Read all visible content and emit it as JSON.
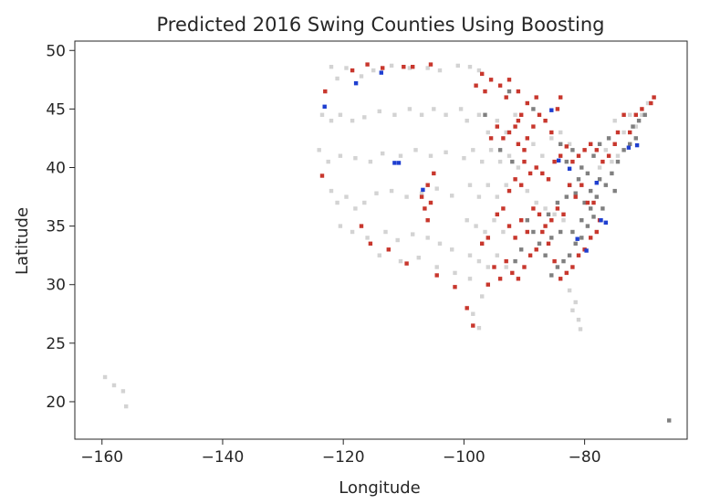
{
  "chart_data": {
    "type": "scatter",
    "title": "Predicted 2016 Swing Counties Using Boosting",
    "xlabel": "Longitude",
    "ylabel": "Latitude",
    "xlim": [
      -164.5,
      -63
    ],
    "ylim": [
      16.8,
      50.8
    ],
    "xticks": [
      -160,
      -140,
      -120,
      -100,
      -80
    ],
    "yticks": [
      20,
      25,
      30,
      35,
      40,
      45,
      50
    ],
    "grid": false,
    "legend": "none",
    "colors": {
      "not_swing": "#d3d3d3",
      "predicted_swing": "#808080",
      "flip_republican": "#c8372d",
      "flip_democrat": "#1f3fd0",
      "axes": "#262626"
    },
    "series": [
      {
        "key": "not_swing",
        "color": "#d3d3d3",
        "points": [
          [
            -159.5,
            22.1
          ],
          [
            -158.0,
            21.4
          ],
          [
            -156.5,
            20.9
          ],
          [
            -156.0,
            19.6
          ],
          [
            -122.0,
            48.6
          ],
          [
            -121.0,
            47.6
          ],
          [
            -119.5,
            48.5
          ],
          [
            -117.0,
            47.8
          ],
          [
            -115.0,
            48.3
          ],
          [
            -112.0,
            48.7
          ],
          [
            -109.0,
            48.5
          ],
          [
            -106.0,
            48.5
          ],
          [
            -104.0,
            48.3
          ],
          [
            -101.0,
            48.7
          ],
          [
            -99.0,
            48.6
          ],
          [
            -97.5,
            48.3
          ],
          [
            -123.5,
            44.5
          ],
          [
            -122.0,
            44.0
          ],
          [
            -120.5,
            44.5
          ],
          [
            -118.5,
            44.0
          ],
          [
            -116.5,
            44.3
          ],
          [
            -114.0,
            44.8
          ],
          [
            -111.5,
            44.5
          ],
          [
            -109.0,
            45.0
          ],
          [
            -107.0,
            44.5
          ],
          [
            -105.0,
            45.0
          ],
          [
            -103.0,
            44.5
          ],
          [
            -100.5,
            45.0
          ],
          [
            -124.0,
            41.5
          ],
          [
            -122.5,
            40.5
          ],
          [
            -120.5,
            41.0
          ],
          [
            -118.0,
            40.8
          ],
          [
            -115.5,
            40.5
          ],
          [
            -113.5,
            41.2
          ],
          [
            -110.5,
            41.0
          ],
          [
            -108.0,
            41.5
          ],
          [
            -105.5,
            41.0
          ],
          [
            -103.0,
            41.3
          ],
          [
            -100.0,
            40.8
          ],
          [
            -122.0,
            38.0
          ],
          [
            -121.0,
            37.0
          ],
          [
            -119.5,
            37.5
          ],
          [
            -118.0,
            36.5
          ],
          [
            -116.5,
            37.0
          ],
          [
            -114.5,
            37.8
          ],
          [
            -112.0,
            38.0
          ],
          [
            -109.5,
            37.5
          ],
          [
            -107.0,
            37.8
          ],
          [
            -104.5,
            38.2
          ],
          [
            -102.0,
            37.6
          ],
          [
            -120.5,
            35.0
          ],
          [
            -118.5,
            34.5
          ],
          [
            -116.0,
            34.0
          ],
          [
            -113.0,
            34.5
          ],
          [
            -111.0,
            33.8
          ],
          [
            -108.5,
            34.3
          ],
          [
            -106.0,
            34.0
          ],
          [
            -104.0,
            33.5
          ],
          [
            -102.0,
            33.0
          ],
          [
            -114.0,
            32.5
          ],
          [
            -110.5,
            32.0
          ],
          [
            -107.5,
            32.3
          ],
          [
            -104.5,
            31.5
          ],
          [
            -101.5,
            31.0
          ],
          [
            -99.0,
            30.5
          ],
          [
            -97.0,
            29.0
          ],
          [
            -98.5,
            27.5
          ],
          [
            -97.5,
            26.3
          ],
          [
            -99.5,
            44.0
          ],
          [
            -97.5,
            44.5
          ],
          [
            -96.0,
            43.0
          ],
          [
            -94.5,
            44.0
          ],
          [
            -93.0,
            43.0
          ],
          [
            -91.5,
            44.5
          ],
          [
            -98.5,
            41.5
          ],
          [
            -97.0,
            40.5
          ],
          [
            -95.5,
            41.5
          ],
          [
            -94.0,
            40.5
          ],
          [
            -92.5,
            41.0
          ],
          [
            -91.0,
            40.0
          ],
          [
            -99.0,
            38.5
          ],
          [
            -97.5,
            37.5
          ],
          [
            -96.0,
            38.5
          ],
          [
            -94.5,
            37.5
          ],
          [
            -93.0,
            38.5
          ],
          [
            -99.5,
            35.5
          ],
          [
            -98.0,
            35.0
          ],
          [
            -96.5,
            34.5
          ],
          [
            -95.0,
            35.5
          ],
          [
            -93.5,
            34.5
          ],
          [
            -99.0,
            32.5
          ],
          [
            -97.5,
            32.0
          ],
          [
            -96.0,
            31.5
          ],
          [
            -94.5,
            32.5
          ],
          [
            -93.0,
            31.5
          ],
          [
            -89.5,
            38.0
          ],
          [
            -88.0,
            37.0
          ],
          [
            -86.5,
            36.5
          ],
          [
            -85.0,
            36.0
          ],
          [
            -83.5,
            35.5
          ],
          [
            -88.5,
            42.0
          ],
          [
            -87.0,
            41.0
          ],
          [
            -85.5,
            42.5
          ],
          [
            -84.0,
            43.0
          ],
          [
            -82.5,
            42.0
          ],
          [
            -82.5,
            29.5
          ],
          [
            -81.5,
            28.5
          ],
          [
            -81.0,
            27.0
          ],
          [
            -80.7,
            26.2
          ],
          [
            -82.0,
            27.8
          ],
          [
            -75.0,
            44.0
          ],
          [
            -73.5,
            43.0
          ],
          [
            -72.5,
            44.5
          ],
          [
            -71.5,
            43.5
          ],
          [
            -70.5,
            44.5
          ],
          [
            -69.5,
            45.5
          ],
          [
            -77.5,
            40.0
          ],
          [
            -76.5,
            41.5
          ],
          [
            -75.5,
            40.5
          ],
          [
            -74.5,
            41.0
          ]
        ]
      },
      {
        "key": "predicted_swing",
        "color": "#808080",
        "points": [
          [
            -66.0,
            18.4
          ],
          [
            -92.5,
            46.5
          ],
          [
            -88.5,
            45.0
          ],
          [
            -84.0,
            42.0
          ],
          [
            -83.0,
            40.5
          ],
          [
            -82.0,
            41.5
          ],
          [
            -80.5,
            40.0
          ],
          [
            -79.5,
            39.5
          ],
          [
            -79.0,
            38.0
          ],
          [
            -78.0,
            37.5
          ],
          [
            -77.0,
            36.5
          ],
          [
            -78.5,
            35.8
          ],
          [
            -79.5,
            35.0
          ],
          [
            -80.5,
            34.0
          ],
          [
            -81.5,
            33.5
          ],
          [
            -82.5,
            32.5
          ],
          [
            -83.5,
            32.0
          ],
          [
            -84.5,
            31.5
          ],
          [
            -85.5,
            30.8
          ],
          [
            -86.5,
            32.5
          ],
          [
            -87.5,
            33.5
          ],
          [
            -88.5,
            34.5
          ],
          [
            -89.5,
            35.5
          ],
          [
            -90.5,
            33.0
          ],
          [
            -91.5,
            32.0
          ],
          [
            -86.0,
            36.0
          ],
          [
            -84.5,
            37.0
          ],
          [
            -83.0,
            37.5
          ],
          [
            -81.5,
            37.8
          ],
          [
            -80.0,
            37.0
          ],
          [
            -76.5,
            38.5
          ],
          [
            -75.5,
            39.5
          ],
          [
            -74.5,
            40.5
          ],
          [
            -73.5,
            41.5
          ],
          [
            -72.5,
            42.0
          ],
          [
            -71.5,
            42.5
          ],
          [
            -72.0,
            43.5
          ],
          [
            -71.0,
            44.0
          ],
          [
            -70.0,
            44.5
          ],
          [
            -76.0,
            42.5
          ],
          [
            -77.5,
            42.0
          ],
          [
            -78.5,
            41.0
          ],
          [
            -81.0,
            39.0
          ],
          [
            -82.5,
            38.5
          ],
          [
            -85.5,
            34.0
          ],
          [
            -84.0,
            34.5
          ],
          [
            -82.0,
            34.5
          ],
          [
            -80.5,
            35.5
          ],
          [
            -79.0,
            36.5
          ],
          [
            -77.5,
            39.0
          ],
          [
            -75.0,
            38.0
          ],
          [
            -96.5,
            44.5
          ],
          [
            -94.0,
            41.5
          ],
          [
            -92.0,
            40.5
          ]
        ]
      },
      {
        "key": "flip_republican",
        "color": "#c8372d",
        "points": [
          [
            -123.5,
            39.3
          ],
          [
            -123.0,
            46.5
          ],
          [
            -118.5,
            48.3
          ],
          [
            -116.0,
            48.8
          ],
          [
            -113.5,
            48.5
          ],
          [
            -110.0,
            48.6
          ],
          [
            -108.5,
            48.6
          ],
          [
            -105.5,
            48.8
          ],
          [
            -97.0,
            48.0
          ],
          [
            -98.0,
            47.0
          ],
          [
            -96.5,
            46.5
          ],
          [
            -95.5,
            47.5
          ],
          [
            -94.0,
            47.0
          ],
          [
            -93.0,
            46.0
          ],
          [
            -92.5,
            47.5
          ],
          [
            -91.0,
            46.5
          ],
          [
            -90.5,
            44.5
          ],
          [
            -91.5,
            43.5
          ],
          [
            -92.5,
            43.0
          ],
          [
            -93.5,
            42.5
          ],
          [
            -94.5,
            43.5
          ],
          [
            -95.5,
            42.5
          ],
          [
            -91.0,
            42.0
          ],
          [
            -90.0,
            41.5
          ],
          [
            -89.5,
            42.5
          ],
          [
            -88.5,
            43.5
          ],
          [
            -87.5,
            44.5
          ],
          [
            -86.5,
            44.0
          ],
          [
            -85.5,
            43.0
          ],
          [
            -84.5,
            45.0
          ],
          [
            -84.0,
            46.0
          ],
          [
            -90.0,
            40.5
          ],
          [
            -89.0,
            39.5
          ],
          [
            -88.0,
            40.0
          ],
          [
            -87.0,
            39.5
          ],
          [
            -86.0,
            39.0
          ],
          [
            -85.0,
            40.5
          ],
          [
            -84.0,
            41.0
          ],
          [
            -83.0,
            41.8
          ],
          [
            -82.0,
            40.5
          ],
          [
            -81.0,
            41.0
          ],
          [
            -80.0,
            41.5
          ],
          [
            -79.0,
            42.0
          ],
          [
            -78.0,
            41.5
          ],
          [
            -77.0,
            40.5
          ],
          [
            -76.0,
            41.0
          ],
          [
            -75.0,
            42.0
          ],
          [
            -74.5,
            43.0
          ],
          [
            -73.5,
            44.5
          ],
          [
            -72.5,
            43.0
          ],
          [
            -71.5,
            44.5
          ],
          [
            -70.5,
            45.0
          ],
          [
            -69.0,
            45.5
          ],
          [
            -68.5,
            46.0
          ],
          [
            -82.5,
            38.5
          ],
          [
            -81.5,
            37.5
          ],
          [
            -80.5,
            38.5
          ],
          [
            -79.5,
            37.0
          ],
          [
            -78.5,
            37.0
          ],
          [
            -77.5,
            35.5
          ],
          [
            -78.0,
            34.5
          ],
          [
            -79.0,
            34.0
          ],
          [
            -80.0,
            33.0
          ],
          [
            -81.0,
            32.5
          ],
          [
            -82.0,
            31.5
          ],
          [
            -83.0,
            31.0
          ],
          [
            -84.0,
            30.5
          ],
          [
            -85.0,
            32.0
          ],
          [
            -86.0,
            33.5
          ],
          [
            -87.0,
            34.5
          ],
          [
            -88.0,
            33.0
          ],
          [
            -89.0,
            32.5
          ],
          [
            -90.0,
            31.5
          ],
          [
            -91.0,
            30.5
          ],
          [
            -92.0,
            31.0
          ],
          [
            -93.0,
            32.0
          ],
          [
            -89.5,
            34.5
          ],
          [
            -90.5,
            35.5
          ],
          [
            -88.5,
            36.5
          ],
          [
            -87.5,
            36.0
          ],
          [
            -86.5,
            35.0
          ],
          [
            -85.5,
            35.5
          ],
          [
            -84.5,
            36.5
          ],
          [
            -83.5,
            36.0
          ],
          [
            -105.0,
            39.5
          ],
          [
            -106.0,
            38.5
          ],
          [
            -107.0,
            37.5
          ],
          [
            -106.5,
            36.5
          ],
          [
            -105.5,
            37.0
          ],
          [
            -106.0,
            35.5
          ],
          [
            -117.0,
            35.0
          ],
          [
            -115.5,
            33.5
          ],
          [
            -112.5,
            33.0
          ],
          [
            -109.5,
            31.8
          ],
          [
            -104.5,
            30.8
          ],
          [
            -101.5,
            29.8
          ],
          [
            -99.5,
            28.0
          ],
          [
            -98.5,
            26.5
          ],
          [
            -96.0,
            30.0
          ],
          [
            -94.0,
            30.5
          ],
          [
            -95.0,
            31.5
          ],
          [
            -97.0,
            33.5
          ],
          [
            -96.0,
            34.0
          ],
          [
            -94.5,
            36.0
          ],
          [
            -93.5,
            36.5
          ],
          [
            -92.5,
            35.0
          ],
          [
            -91.5,
            34.0
          ],
          [
            -90.5,
            38.5
          ],
          [
            -91.5,
            39.0
          ],
          [
            -92.5,
            38.0
          ],
          [
            -91.0,
            44.0
          ],
          [
            -89.5,
            45.5
          ],
          [
            -88.0,
            46.0
          ]
        ]
      },
      {
        "key": "flip_democrat",
        "color": "#1f3fd0",
        "points": [
          [
            -123.1,
            45.2
          ],
          [
            -117.9,
            47.2
          ],
          [
            -113.7,
            48.1
          ],
          [
            -111.5,
            40.4
          ],
          [
            -110.8,
            40.4
          ],
          [
            -106.8,
            38.1
          ],
          [
            -85.5,
            44.9
          ],
          [
            -84.3,
            40.6
          ],
          [
            -82.5,
            39.9
          ],
          [
            -78.0,
            38.7
          ],
          [
            -76.5,
            35.3
          ],
          [
            -77.3,
            35.5
          ],
          [
            -81.2,
            33.9
          ],
          [
            -79.7,
            32.9
          ],
          [
            -72.7,
            41.7
          ],
          [
            -71.3,
            41.9
          ]
        ]
      }
    ]
  }
}
